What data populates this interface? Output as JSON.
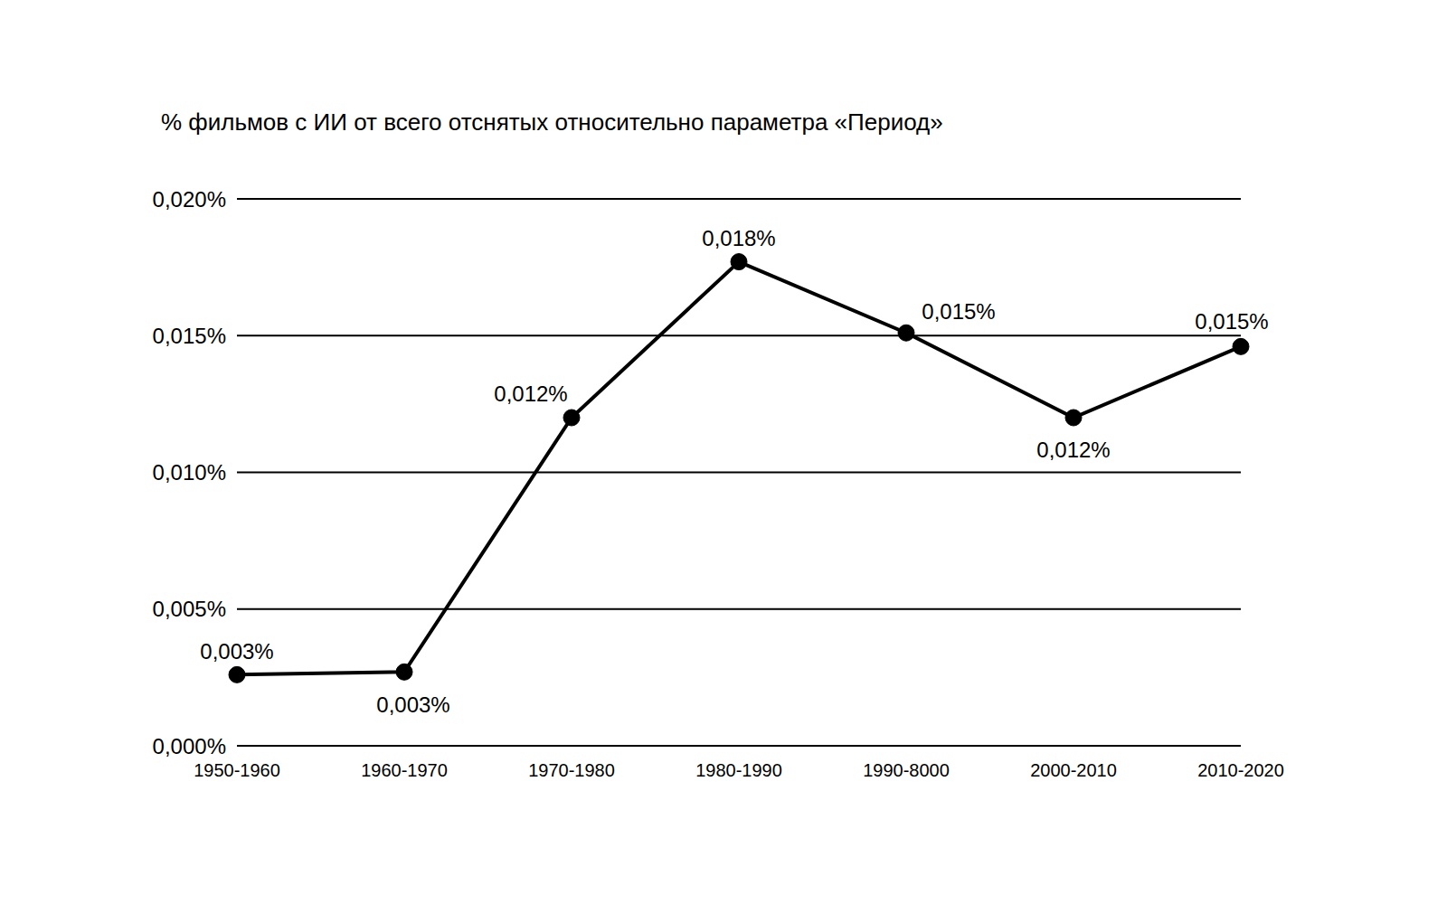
{
  "chart_data": {
    "type": "line",
    "title": "% фильмов с ИИ от всего отснятых относительно параметра «Период»",
    "categories": [
      "1950-1960",
      "1960-1970",
      "1970-1980",
      "1980-1990",
      "1990-8000",
      "2000-2010",
      "2010-2020"
    ],
    "values": [
      0.0026,
      0.0027,
      0.012,
      0.0177,
      0.0151,
      0.012,
      0.0146
    ],
    "value_labels": [
      "0,003%",
      "0,003%",
      "0,012%",
      "0,018%",
      "0,015%",
      "0,012%",
      "0,015%"
    ],
    "data_labels": true,
    "color": "#000000",
    "marker": "circle",
    "line_style": "solid",
    "ylim": [
      0,
      0.02
    ],
    "yticks": [
      {
        "value": 0,
        "label": "0,000%"
      },
      {
        "value": 0.005,
        "label": "0,005%"
      },
      {
        "value": 0.01,
        "label": "0,010%"
      },
      {
        "value": 0.015,
        "label": "0,015%"
      },
      {
        "value": 0.02,
        "label": "0,020%"
      }
    ],
    "grid": true
  }
}
